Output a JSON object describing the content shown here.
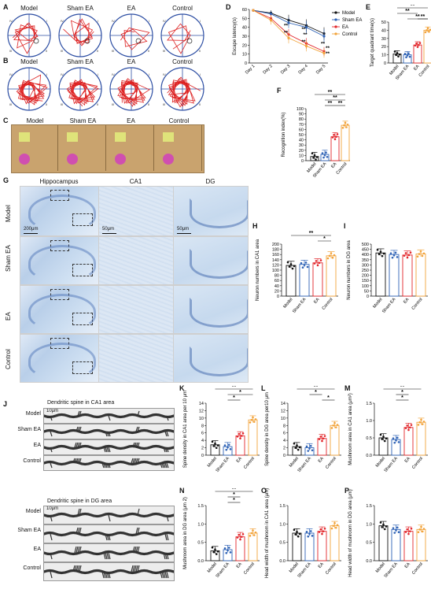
{
  "panel_letters": {
    "A": "A",
    "B": "B",
    "C": "C",
    "D": "D",
    "E": "E",
    "F": "F",
    "G": "G",
    "H": "H",
    "I": "I",
    "J": "J",
    "K": "K",
    "L": "L",
    "M": "M",
    "N": "N",
    "O": "O",
    "P": "P"
  },
  "groups": [
    "Model",
    "Sham EA",
    "EA",
    "Control"
  ],
  "colors": {
    "Model": "#111111",
    "Sham EA": "#2f63b6",
    "EA": "#e2262b",
    "Control": "#f2a33a"
  },
  "quadrants": [
    "IV",
    "I",
    "III",
    "II"
  ],
  "histology": {
    "columns": [
      "Hippocampus",
      "CA1",
      "DG"
    ],
    "rows": [
      "Model",
      "Sham EA",
      "EA",
      "Control"
    ],
    "scales": [
      "200μm",
      "50μm",
      "50μm"
    ]
  },
  "spines": {
    "ca1_title": "Dendritic spine in CA1 area",
    "dg_title": "Dendritic spine in DG area",
    "scale": "10μm",
    "rows": [
      "Model",
      "Sham EA",
      "EA",
      "Control"
    ]
  },
  "chart_data": [
    {
      "id": "D",
      "type": "line",
      "x": [
        "Day 1",
        "Day 2",
        "Day 3",
        "Day 4",
        "Day 5"
      ],
      "ylabel": "Escape latency(s)",
      "ylim": [
        0,
        60
      ],
      "yticks": [
        0,
        10,
        20,
        30,
        40,
        50,
        60
      ],
      "series": [
        {
          "name": "Model",
          "values": [
            59,
            56,
            48,
            42,
            33
          ],
          "err": [
            1,
            3,
            6,
            7,
            7
          ]
        },
        {
          "name": "Sham EA",
          "values": [
            59,
            55,
            45,
            40,
            30
          ],
          "err": [
            1,
            3,
            6,
            7,
            8
          ]
        },
        {
          "name": "EA",
          "values": [
            59,
            50,
            32,
            22,
            13
          ],
          "err": [
            1,
            4,
            6,
            6,
            5
          ]
        },
        {
          "name": "Control",
          "values": [
            59,
            48,
            28,
            19,
            11
          ],
          "err": [
            1,
            5,
            6,
            6,
            5
          ]
        }
      ],
      "annotations": [
        "**",
        "**",
        "**",
        "**",
        "**",
        "**",
        "**",
        "**"
      ]
    },
    {
      "id": "E",
      "type": "bar",
      "ylabel": "Target quadrant time(s)",
      "ylim": [
        0,
        50
      ],
      "yticks": [
        0,
        10,
        20,
        30,
        40,
        50
      ],
      "categories": [
        "Model",
        "Sham EA",
        "EA",
        "Control"
      ],
      "values": [
        11,
        10,
        22,
        40
      ],
      "annotations": [
        "**",
        "**",
        "**",
        "**"
      ]
    },
    {
      "id": "F",
      "type": "bar",
      "ylabel": "Recognition index(%)",
      "ylim": [
        0,
        100
      ],
      "yticks": [
        0,
        10,
        20,
        30,
        40,
        50,
        60,
        70,
        80,
        90,
        100
      ],
      "categories": [
        "Model",
        "Sham EA",
        "EA",
        "Control"
      ],
      "values": [
        8,
        12,
        46,
        68
      ],
      "annotations": [
        "**",
        "**",
        "**",
        "**"
      ]
    },
    {
      "id": "H",
      "type": "bar",
      "ylabel": "Neuron numbers in CA1 area",
      "ylim": [
        0,
        200
      ],
      "yticks": [
        0,
        20,
        40,
        60,
        80,
        100,
        120,
        140,
        160,
        180,
        200
      ],
      "categories": [
        "Model",
        "Sham EA",
        "EA",
        "Control"
      ],
      "values": [
        118,
        122,
        128,
        155
      ],
      "annotations": [
        "**",
        "*"
      ]
    },
    {
      "id": "I",
      "type": "bar",
      "ylabel": "Neuron numbers in DG area",
      "ylim": [
        0,
        500
      ],
      "yticks": [
        0,
        50,
        100,
        150,
        200,
        250,
        300,
        350,
        400,
        450,
        500
      ],
      "categories": [
        "Model",
        "Sham EA",
        "EA",
        "Control"
      ],
      "values": [
        415,
        400,
        395,
        405
      ],
      "annotations": []
    },
    {
      "id": "K",
      "type": "bar",
      "ylabel": "Spine density in CA1 area per 10 μm",
      "ylim": [
        0,
        14
      ],
      "yticks": [
        0,
        2,
        4,
        6,
        8,
        10,
        12,
        14
      ],
      "categories": [
        "Model",
        "Sham EA",
        "EA",
        "Control"
      ],
      "values": [
        2.8,
        2.3,
        5.2,
        9.5
      ],
      "annotations": [
        "**",
        "*",
        "*"
      ]
    },
    {
      "id": "L",
      "type": "bar",
      "ylabel": "Spine density in DG area per10 μm",
      "ylim": [
        0,
        14
      ],
      "yticks": [
        0,
        2,
        4,
        6,
        8,
        10,
        12,
        14
      ],
      "categories": [
        "Model",
        "Sham EA",
        "EA",
        "Control"
      ],
      "values": [
        2.3,
        2.0,
        4.5,
        8.0
      ],
      "annotations": [
        "**",
        "*",
        "*"
      ]
    },
    {
      "id": "M",
      "type": "bar",
      "ylabel": "Mushroom area in CA1 area (μm²)",
      "ylim": [
        0,
        1.5
      ],
      "yticks": [
        0,
        0.5,
        1.0,
        1.5
      ],
      "categories": [
        "Model",
        "Sham EA",
        "EA",
        "Control"
      ],
      "values": [
        0.5,
        0.45,
        0.8,
        0.95
      ],
      "annotations": [
        "**",
        "*",
        "*"
      ]
    },
    {
      "id": "N",
      "type": "bar",
      "ylabel": "Mushroom area in DG area (μm 2)",
      "ylim": [
        0,
        1.5
      ],
      "yticks": [
        0,
        0.5,
        1.0,
        1.5
      ],
      "categories": [
        "Model",
        "Sham EA",
        "EA",
        "Control"
      ],
      "values": [
        0.27,
        0.3,
        0.65,
        0.75
      ],
      "annotations": [
        "**",
        "*",
        "*"
      ]
    },
    {
      "id": "O",
      "type": "bar",
      "ylabel": "Head width of mushroom in CA1 area (μm)",
      "ylim": [
        0,
        1.5
      ],
      "yticks": [
        0,
        0.5,
        1.0,
        1.5
      ],
      "categories": [
        "Model",
        "Sham EA",
        "EA",
        "Control"
      ],
      "values": [
        0.75,
        0.75,
        0.8,
        0.95
      ],
      "annotations": []
    },
    {
      "id": "P",
      "type": "bar",
      "ylabel": "Head width of mushroom in DG area (μm)",
      "ylim": [
        0,
        1.5
      ],
      "yticks": [
        0,
        0.5,
        1.0,
        1.5
      ],
      "categories": [
        "Model",
        "Sham EA",
        "EA",
        "Control"
      ],
      "values": [
        0.95,
        0.85,
        0.8,
        0.85
      ],
      "annotations": []
    }
  ]
}
